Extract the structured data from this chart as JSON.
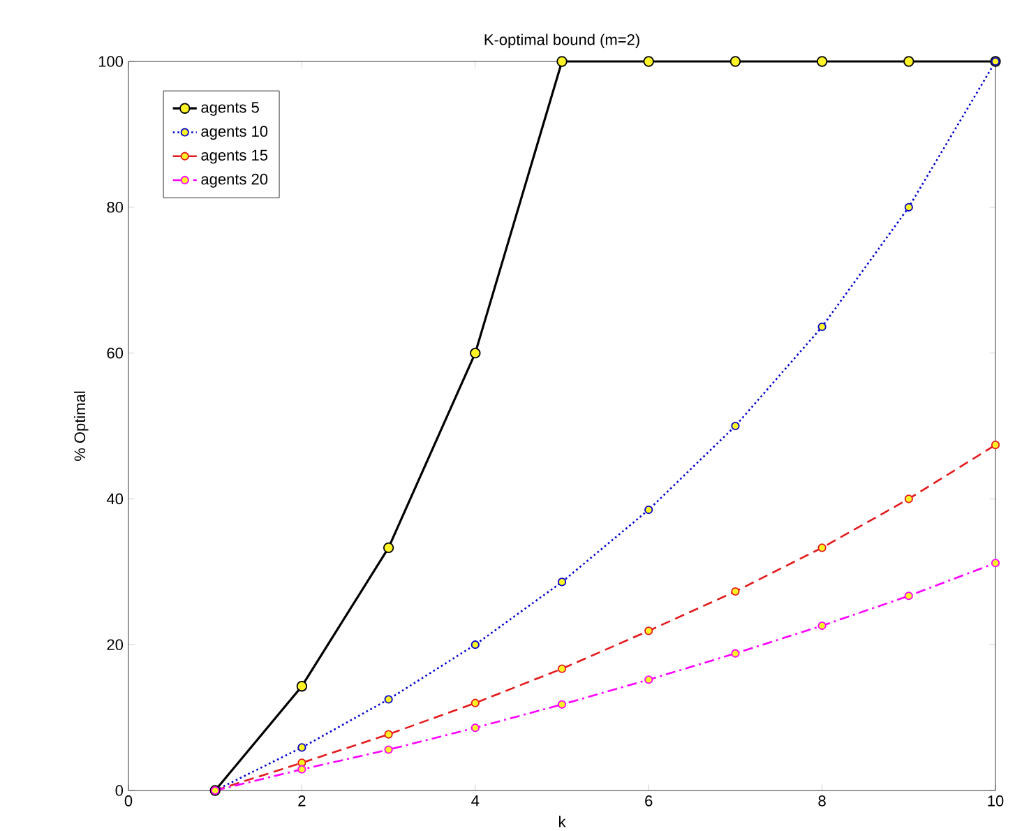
{
  "chart_data": {
    "type": "line",
    "title": "K-optimal bound (m=2)",
    "xlabel": "k",
    "ylabel": "% Optimal",
    "x": [
      1,
      2,
      3,
      4,
      5,
      6,
      7,
      8,
      9,
      10
    ],
    "series": [
      {
        "name": "agents 5",
        "color": "#000000",
        "line_style": "solid",
        "values": [
          0,
          14.3,
          33.3,
          60,
          100,
          100,
          100,
          100,
          100,
          100
        ]
      },
      {
        "name": "agents 10",
        "color": "#0000cc",
        "line_style": "dotted",
        "values": [
          0,
          5.9,
          12.5,
          20,
          28.6,
          38.5,
          50,
          63.6,
          80,
          100
        ]
      },
      {
        "name": "agents 15",
        "color": "#e31a1c",
        "line_style": "dashed",
        "values": [
          0,
          3.8,
          7.7,
          12,
          16.7,
          21.9,
          27.3,
          33.3,
          40,
          47.4
        ]
      },
      {
        "name": "agents 20",
        "color": "#ff00ff",
        "line_style": "dashdot",
        "values": [
          0,
          2.9,
          5.6,
          8.6,
          11.8,
          15.2,
          18.8,
          22.6,
          26.7,
          31.2
        ]
      }
    ],
    "xlim": [
      0,
      10
    ],
    "xticks": [
      0,
      2,
      4,
      6,
      8,
      10
    ],
    "ylim": [
      0,
      100
    ],
    "yticks": [
      0,
      20,
      40,
      60,
      80,
      100
    ],
    "grid": false,
    "legend": "top left",
    "marker": "circle"
  }
}
